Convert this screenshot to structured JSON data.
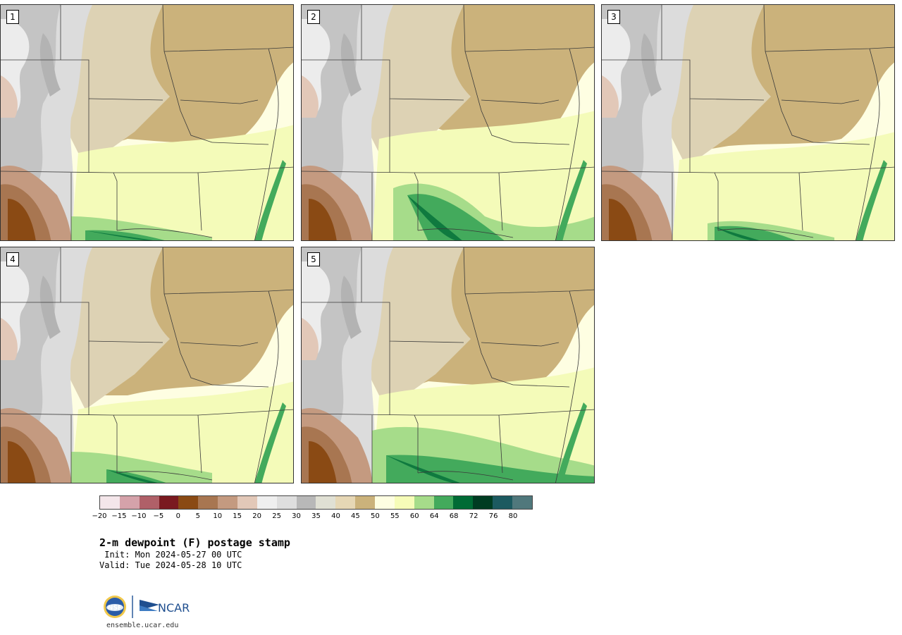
{
  "figure": {
    "title": "2-m dewpoint (F) postage stamp",
    "init_label": " Init: Mon 2024-05-27 00 UTC",
    "valid_label": "Valid: Tue 2024-05-28 10 UTC",
    "website": "ensemble.ucar.edu",
    "logos": [
      "NSF",
      "NCAR"
    ]
  },
  "members": [
    "1",
    "2",
    "3",
    "4",
    "5"
  ],
  "colorbar": {
    "ticks": [
      "−20",
      "−15",
      "−10",
      "−5",
      "0",
      "5",
      "10",
      "15",
      "20",
      "25",
      "30",
      "35",
      "40",
      "45",
      "50",
      "55",
      "60",
      "64",
      "68",
      "72",
      "76",
      "80"
    ],
    "colors": [
      "#f4e6ea",
      "#d5a2aa",
      "#b06068",
      "#7a1a20",
      "#8a4a14",
      "#a87651",
      "#c49a80",
      "#e2c8b8",
      "#efefef",
      "#dedede",
      "#b8b8b8",
      "#e0e0d4",
      "#e6d7b5",
      "#cbb27b",
      "#fefee2",
      "#f6fcb8",
      "#a6dc8a",
      "#43aa5c",
      "#006b35",
      "#003c22",
      "#1c5a60",
      "#50787c"
    ]
  }
}
